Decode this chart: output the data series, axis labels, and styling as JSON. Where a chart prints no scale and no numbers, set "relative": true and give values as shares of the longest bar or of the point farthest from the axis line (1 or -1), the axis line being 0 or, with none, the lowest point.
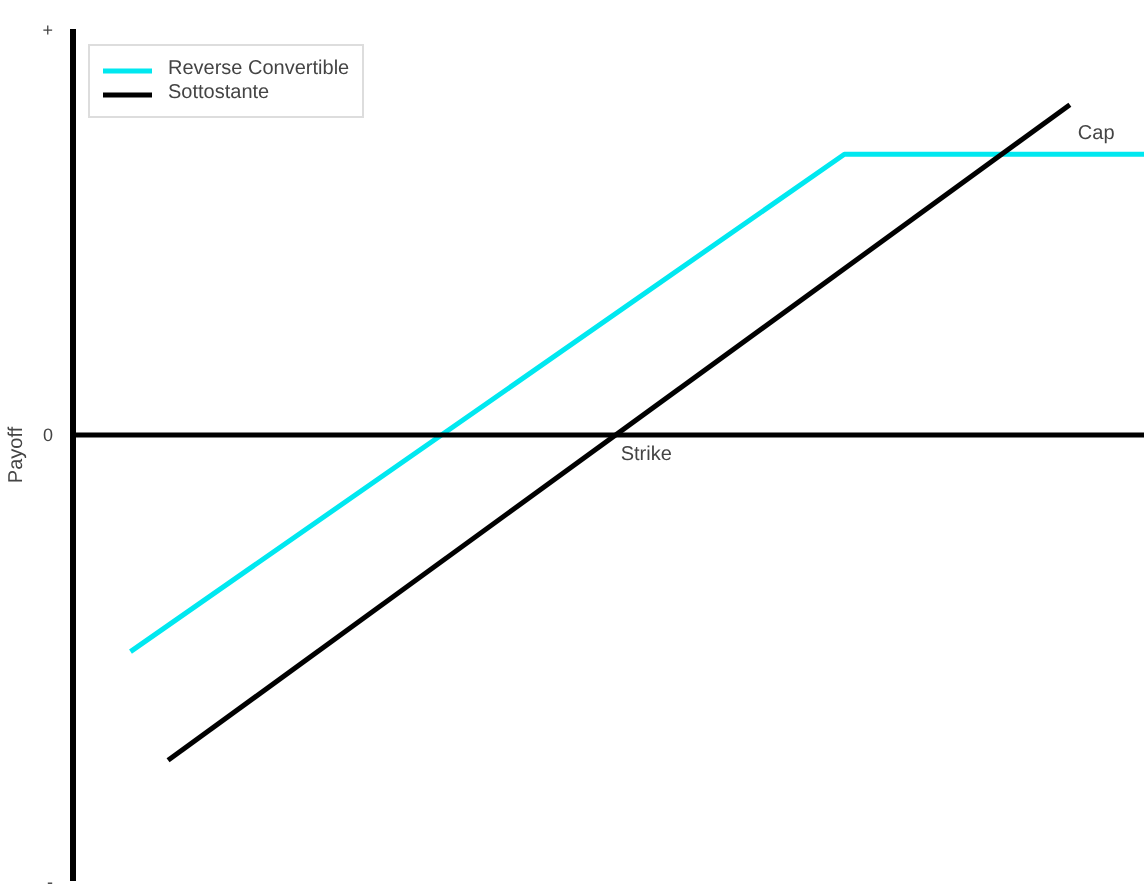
{
  "chart_data": {
    "type": "line",
    "relative": true,
    "ylabel": "Payoff",
    "categories": [
      null,
      null,
      null,
      null,
      null,
      null,
      null,
      null,
      null,
      null,
      null,
      null,
      null,
      null,
      null,
      null,
      null,
      null,
      null,
      null,
      null,
      null,
      null,
      null,
      null,
      null,
      null,
      null
    ],
    "legend": "top left",
    "line_style": "solid",
    "series": [
      {
        "name": "Reverse Convertible",
        "color": "#00e8f0",
        "values": [
          -0.66,
          null,
          null,
          null,
          null,
          null,
          null,
          null,
          null,
          null,
          null,
          null,
          null,
          null,
          null,
          null,
          null,
          null,
          null,
          0.85,
          null,
          null,
          null,
          null,
          null,
          null,
          null,
          0.85
        ]
      },
      {
        "name": "Sottostante",
        "color": "#000000",
        "values": [
          null,
          -0.99,
          null,
          null,
          null,
          null,
          null,
          null,
          null,
          null,
          null,
          null,
          null,
          null,
          null,
          null,
          null,
          null,
          null,
          null,
          null,
          null,
          null,
          null,
          null,
          1.0,
          null,
          null
        ]
      }
    ],
    "annotations": [
      "+",
      "0",
      "-",
      "Strike",
      "Cap"
    ]
  }
}
